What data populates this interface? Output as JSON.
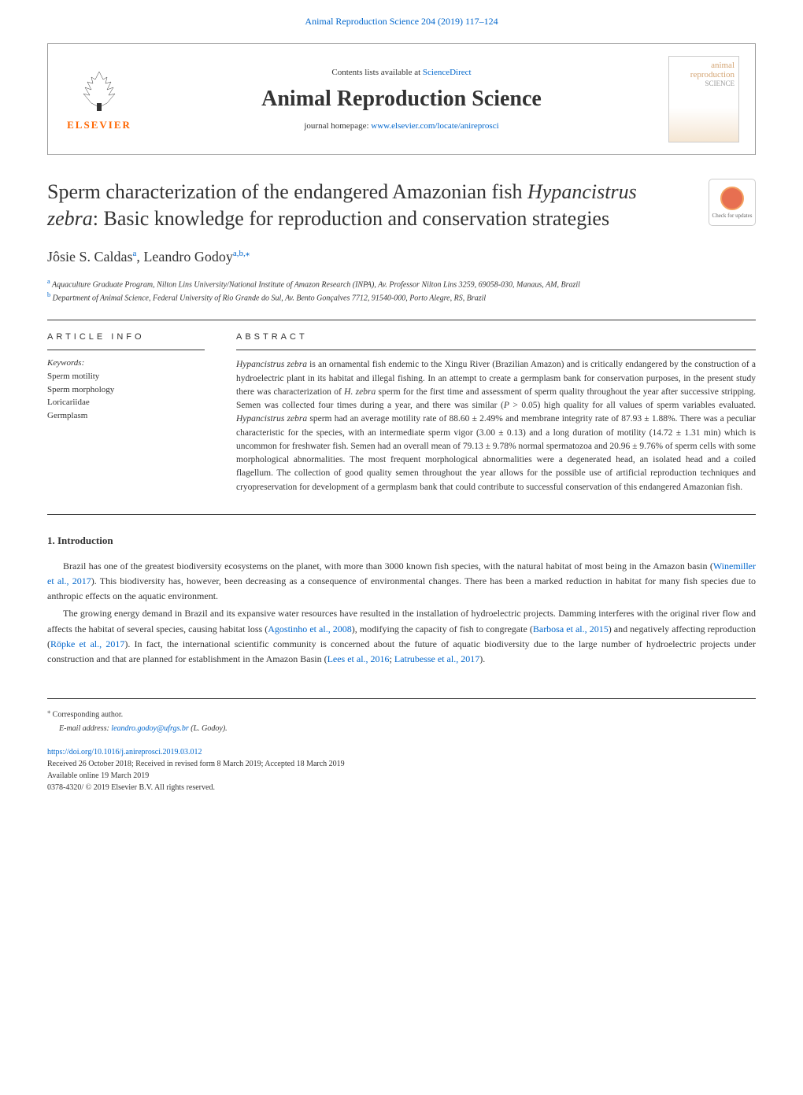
{
  "top_link": {
    "citation": "Animal Reproduction Science 204 (2019) 117–124",
    "url_text": "Animal Reproduction Science 204 (2019) 117–124"
  },
  "header": {
    "elsevier_name": "ELSEVIER",
    "contents_label": "Contents lists available at ",
    "sciencedirect": "ScienceDirect",
    "journal_title": "Animal Reproduction Science",
    "homepage_label": "journal homepage: ",
    "homepage_url": "www.elsevier.com/locate/anireprosci",
    "cover_text1": "animal",
    "cover_text2": "reproduction",
    "cover_text3": "SCIENCE"
  },
  "article": {
    "title_part1": "Sperm characterization of the endangered Amazonian fish ",
    "title_italic": "Hypancistrus zebra",
    "title_part2": ": Basic knowledge for reproduction and conservation strategies",
    "check_updates": "Check for updates"
  },
  "authors": {
    "author1": "Jôsie S. Caldas",
    "author1_sup": "a",
    "author2": "Leandro Godoy",
    "author2_sup": "a,b,",
    "corresponding_mark": "⁎"
  },
  "affiliations": {
    "a_label": "a",
    "a_text": " Aquaculture Graduate Program, Nilton Lins University/National Institute of Amazon Research (INPA), Av. Professor Nilton Lins 3259, 69058-030, Manaus, AM, Brazil",
    "b_label": "b",
    "b_text": " Department of Animal Science, Federal University of Rio Grande do Sul, Av. Bento Gonçalves 7712, 91540-000, Porto Alegre, RS, Brazil"
  },
  "info": {
    "heading": "ARTICLE INFO",
    "keywords_label": "Keywords:",
    "keywords": [
      "Sperm motility",
      "Sperm morphology",
      "Loricariidae",
      "Germplasm"
    ]
  },
  "abstract": {
    "heading": "ABSTRACT",
    "text_parts": [
      {
        "italic": true,
        "text": "Hypancistrus zebra"
      },
      {
        "italic": false,
        "text": " is an ornamental fish endemic to the Xingu River (Brazilian Amazon) and is critically endangered by the construction of a hydroelectric plant in its habitat and illegal fishing. In an attempt to create a germplasm bank for conservation purposes, in the present study there was characterization of "
      },
      {
        "italic": true,
        "text": "H. zebra"
      },
      {
        "italic": false,
        "text": " sperm for the first time and assessment of sperm quality throughout the year after successive stripping. Semen was collected four times during a year, and there was similar ("
      },
      {
        "italic": true,
        "text": "P"
      },
      {
        "italic": false,
        "text": " > 0.05) high quality for all values of sperm variables evaluated. "
      },
      {
        "italic": true,
        "text": "Hypancistrus zebra"
      },
      {
        "italic": false,
        "text": " sperm had an average motility rate of 88.60 ± 2.49% and membrane integrity rate of 87.93 ± 1.88%. There was a peculiar characteristic for the species, with an intermediate sperm vigor (3.00 ± 0.13) and a long duration of motility (14.72 ± 1.31 min) which is uncommon for freshwater fish. Semen had an overall mean of 79.13 ± 9.78% normal spermatozoa and 20.96 ± 9.76% of sperm cells with some morphological abnormalities. The most frequent morphological abnormalities were a degenerated head, an isolated head and a coiled flagellum. The collection of good quality semen throughout the year allows for the possible use of artificial reproduction techniques and cryopreservation for development of a germplasm bank that could contribute to successful conservation of this endangered Amazonian fish."
      }
    ]
  },
  "introduction": {
    "heading": "1. Introduction",
    "para1_part1": "Brazil has one of the greatest biodiversity ecosystems on the planet, with more than 3000 known fish species, with the natural habitat of most being in the Amazon basin (",
    "para1_cite1": "Winemiller et al., 2017",
    "para1_part2": "). This biodiversity has, however, been decreasing as a consequence of environmental changes. There has been a marked reduction in habitat for many fish species due to anthropic effects on the aquatic environment.",
    "para2_part1": "The growing energy demand in Brazil and its expansive water resources have resulted in the installation of hydroelectric projects. Damming interferes with the original river flow and affects the habitat of several species, causing habitat loss (",
    "para2_cite1": "Agostinho et al., 2008",
    "para2_part2": "), modifying the capacity of fish to congregate (",
    "para2_cite2": "Barbosa et al., 2015",
    "para2_part3": ") and negatively affecting reproduction (",
    "para2_cite3": "Röpke et al., 2017",
    "para2_part4": "). In fact, the international scientific community is concerned about the future of aquatic biodiversity due to the large number of hydroelectric projects under construction and that are planned for establishment in the Amazon Basin (",
    "para2_cite4": "Lees et al., 2016",
    "para2_part5": "; ",
    "para2_cite5": "Latrubesse et al., 2017",
    "para2_part6": ")."
  },
  "footer": {
    "corresponding_mark": "⁎",
    "corresponding_text": " Corresponding author.",
    "email_label": "E-mail address: ",
    "email": "leandro.godoy@ufrgs.br",
    "email_suffix": " (L. Godoy).",
    "doi": "https://doi.org/10.1016/j.anireprosci.2019.03.012",
    "received": "Received 26 October 2018; Received in revised form 8 March 2019; Accepted 18 March 2019",
    "available": "Available online 19 March 2019",
    "copyright": "0378-4320/ © 2019 Elsevier B.V. All rights reserved."
  },
  "colors": {
    "link": "#0066cc",
    "elsevier_orange": "#ff6600",
    "text": "#333333",
    "border": "#999999"
  }
}
